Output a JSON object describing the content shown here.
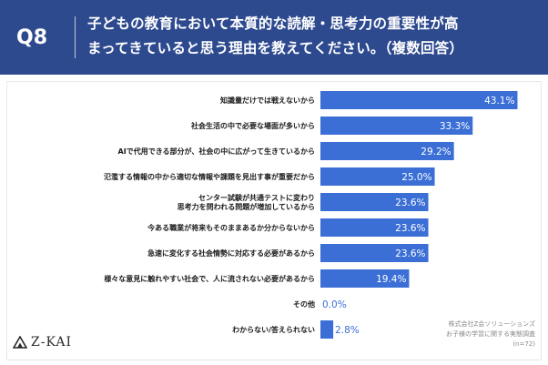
{
  "header": {
    "qnum": "Q8",
    "title_line1": "子どもの教育において本質的な読解・思考力の重要性が高",
    "title_line2": "まってきていると思う理由を教えてください。（複数回答）"
  },
  "logo": {
    "text": "Z-KAI"
  },
  "source": {
    "line1": "株式会社Z会ソリューションズ",
    "line2": "お子様の学習に関する実態調査",
    "line3": "(n=72)"
  },
  "colors": {
    "header": "#2e4a8f",
    "bar": "#3b6fd6",
    "label": "#1a1a1a"
  },
  "chart_data": {
    "type": "bar",
    "orientation": "horizontal",
    "categories": [
      [
        "知識量だけでは戦えないから"
      ],
      [
        "社会生活の中で必要な場面が多いから"
      ],
      [
        "AIで代用できる部分が、社会の中に広がって生きているから"
      ],
      [
        "氾濫する情報の中から適切な情報や課題を見出す事が重要だから"
      ],
      [
        "センター試験が共通テストに変わり",
        "思考力を問われる問題が増加しているから"
      ],
      [
        "今ある職業が将来もそのままあるか分からないから"
      ],
      [
        "急速に変化する社会情勢に対応する必要があるから"
      ],
      [
        "様々な意見に触れやすい社会で、人に流されない必要があるから"
      ],
      [
        "その他"
      ],
      [
        "わからない/答えられない"
      ]
    ],
    "values": [
      43.1,
      33.3,
      29.2,
      25.0,
      23.6,
      23.6,
      23.6,
      19.4,
      0.0,
      2.8
    ],
    "value_labels": [
      "43.1%",
      "33.3%",
      "29.2%",
      "25.0%",
      "23.6%",
      "23.6%",
      "23.6%",
      "19.4%",
      "0.0%",
      "2.8%"
    ],
    "xlim": [
      0,
      45
    ],
    "grid": false,
    "legend": "none"
  }
}
